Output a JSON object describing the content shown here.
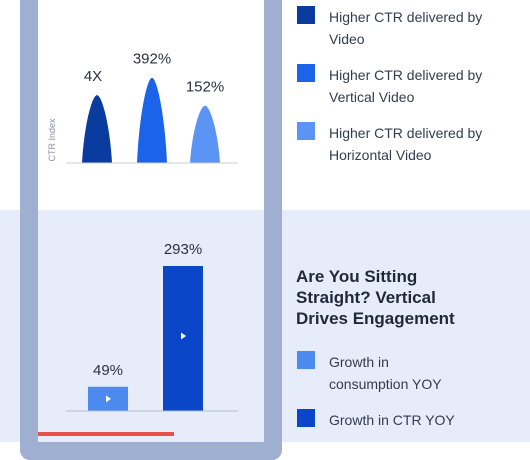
{
  "colors": {
    "dark_blue": "#0a3b9e",
    "mid_blue": "#1b63e8",
    "light_blue": "#5b94f5",
    "bar_light": "#4d8af0",
    "bar_dark": "#0b46c8",
    "frame": "#9eafd1",
    "accent_red": "#e9514b"
  },
  "top_legend": [
    {
      "label_line1": "Higher CTR delivered by",
      "label_line2": "Video",
      "color": "#0a3b9e"
    },
    {
      "label_line1": "Higher CTR delivered by",
      "label_line2": "Vertical Video",
      "color": "#1b63e8"
    },
    {
      "label_line1": "Higher CTR delivered by",
      "label_line2": "Horizontal Video",
      "color": "#5b94f5"
    }
  ],
  "bottom_section": {
    "heading_line1": "Are You Sitting",
    "heading_line2": "Straight?  Vertical",
    "heading_line3": "Drives Engagement",
    "legend": [
      {
        "label_line1": "Growth in",
        "label_line2": "consumption YOY",
        "color": "#4d8af0"
      },
      {
        "label_line1": "Growth in CTR YOY",
        "label_line2": "",
        "color": "#0b46c8"
      }
    ]
  },
  "chart_data": [
    {
      "type": "area",
      "ylabel": "CTR Index",
      "series": [
        {
          "name": "Higher CTR delivered by Video",
          "value": 400,
          "label": "4X",
          "color": "#0a3b9e"
        },
        {
          "name": "Higher CTR delivered by Vertical Video",
          "value": 392,
          "label": "392%",
          "color": "#1b63e8"
        },
        {
          "name": "Higher CTR delivered by Horizontal Video",
          "value": 152,
          "label": "152%",
          "color": "#5b94f5"
        }
      ]
    },
    {
      "type": "bar",
      "categories": [
        "Growth in consumption YOY",
        "Growth in CTR YOY"
      ],
      "values": [
        49,
        293
      ],
      "labels": [
        "49%",
        "293%"
      ],
      "colors": [
        "#4d8af0",
        "#0b46c8"
      ],
      "ylim": [
        0,
        300
      ]
    }
  ]
}
